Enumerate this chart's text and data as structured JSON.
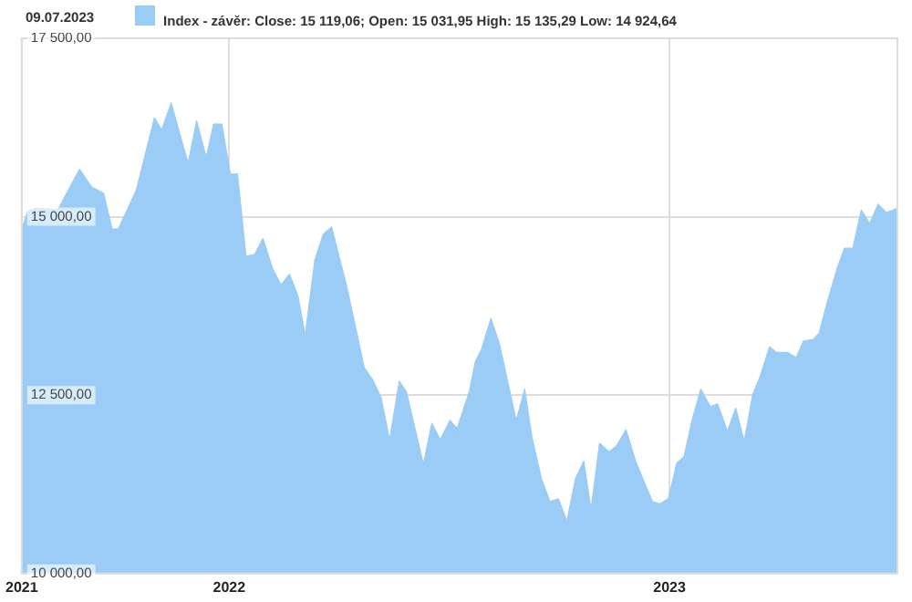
{
  "chart_data": {
    "type": "area",
    "title": "09.07.2023",
    "legend": "top left",
    "grid": true,
    "marker": "none",
    "xlim": [
      "2021-07-13",
      "2023-07-09"
    ],
    "xticks": [
      {
        "value": "2021-07-13",
        "label": "2021"
      },
      {
        "value": "2022-01-01",
        "label": "2022"
      },
      {
        "value": "2023-01-01",
        "label": "2023"
      }
    ],
    "ylim": [
      10000,
      17500
    ],
    "yticks": [
      {
        "value": 10000,
        "label": "10 000,00"
      },
      {
        "value": 12500,
        "label": "12 500,00"
      },
      {
        "value": 15000,
        "label": "15 000,00"
      },
      {
        "value": 17500,
        "label": "17 500,00"
      }
    ],
    "series": [
      {
        "name": "Index - závěr: Close: 15 119,06; Open: 15 031,95 High: 15 135,29 Low: 14 924,64",
        "color": "#9accf5",
        "x": [
          "2021-07-13",
          "2021-07-18",
          "2021-07-25",
          "2021-08-12",
          "2021-08-22",
          "2021-08-30",
          "2021-09-09",
          "2021-09-19",
          "2021-09-26",
          "2021-10-01",
          "2021-10-09",
          "2021-10-16",
          "2021-10-31",
          "2021-11-06",
          "2021-11-14",
          "2021-11-23",
          "2021-11-28",
          "2021-12-05",
          "2021-12-13",
          "2021-12-19",
          "2021-12-26",
          "2022-01-02",
          "2022-01-08",
          "2022-01-15",
          "2022-01-22",
          "2022-01-29",
          "2022-02-06",
          "2022-02-13",
          "2022-02-20",
          "2022-02-27",
          "2022-03-05",
          "2022-03-13",
          "2022-03-20",
          "2022-03-27",
          "2022-04-09",
          "2022-04-23",
          "2022-04-30",
          "2022-05-07",
          "2022-05-14",
          "2022-05-22",
          "2022-05-28",
          "2022-06-11",
          "2022-06-18",
          "2022-06-25",
          "2022-07-03",
          "2022-07-09",
          "2022-07-19",
          "2022-07-24",
          "2022-07-29",
          "2022-08-06",
          "2022-08-13",
          "2022-08-27",
          "2022-09-03",
          "2022-09-09",
          "2022-09-17",
          "2022-09-24",
          "2022-10-01",
          "2022-10-08",
          "2022-10-15",
          "2022-10-22",
          "2022-10-28",
          "2022-11-04",
          "2022-11-12",
          "2022-11-18",
          "2022-11-26",
          "2022-12-04",
          "2022-12-11",
          "2022-12-18",
          "2022-12-24",
          "2022-12-31",
          "2023-01-07",
          "2023-01-13",
          "2023-01-20",
          "2023-01-27",
          "2023-02-04",
          "2023-02-10",
          "2023-02-18",
          "2023-02-25",
          "2023-03-04",
          "2023-03-11",
          "2023-03-17",
          "2023-03-25",
          "2023-03-31",
          "2023-04-09",
          "2023-04-16",
          "2023-04-22",
          "2023-04-30",
          "2023-05-05",
          "2023-05-12",
          "2023-05-20",
          "2023-05-26",
          "2023-06-02",
          "2023-06-09",
          "2023-06-16",
          "2023-06-23",
          "2023-06-30",
          "2023-07-09"
        ],
        "values": [
          14830,
          15080,
          15120,
          15100,
          15420,
          15670,
          15420,
          15330,
          14830,
          14830,
          15120,
          15380,
          16390,
          16220,
          16600,
          16050,
          15760,
          16350,
          15840,
          16300,
          16300,
          15600,
          15600,
          14450,
          14470,
          14700,
          14280,
          14050,
          14200,
          13900,
          13350,
          14400,
          14760,
          14860,
          13990,
          12890,
          12720,
          12470,
          11880,
          12700,
          12550,
          11540,
          12110,
          11880,
          12150,
          12040,
          12550,
          12970,
          13140,
          13580,
          13230,
          12150,
          12590,
          11920,
          11330,
          11010,
          11050,
          10740,
          11330,
          11580,
          10910,
          11830,
          11710,
          11790,
          12020,
          11580,
          11290,
          11010,
          10980,
          11050,
          11550,
          11640,
          12170,
          12590,
          12340,
          12380,
          12000,
          12320,
          11860,
          12510,
          12760,
          13180,
          13100,
          13100,
          13030,
          13260,
          13280,
          13370,
          13820,
          14280,
          14560,
          14560,
          15100,
          14910,
          15180,
          15060,
          15120
        ]
      }
    ]
  }
}
